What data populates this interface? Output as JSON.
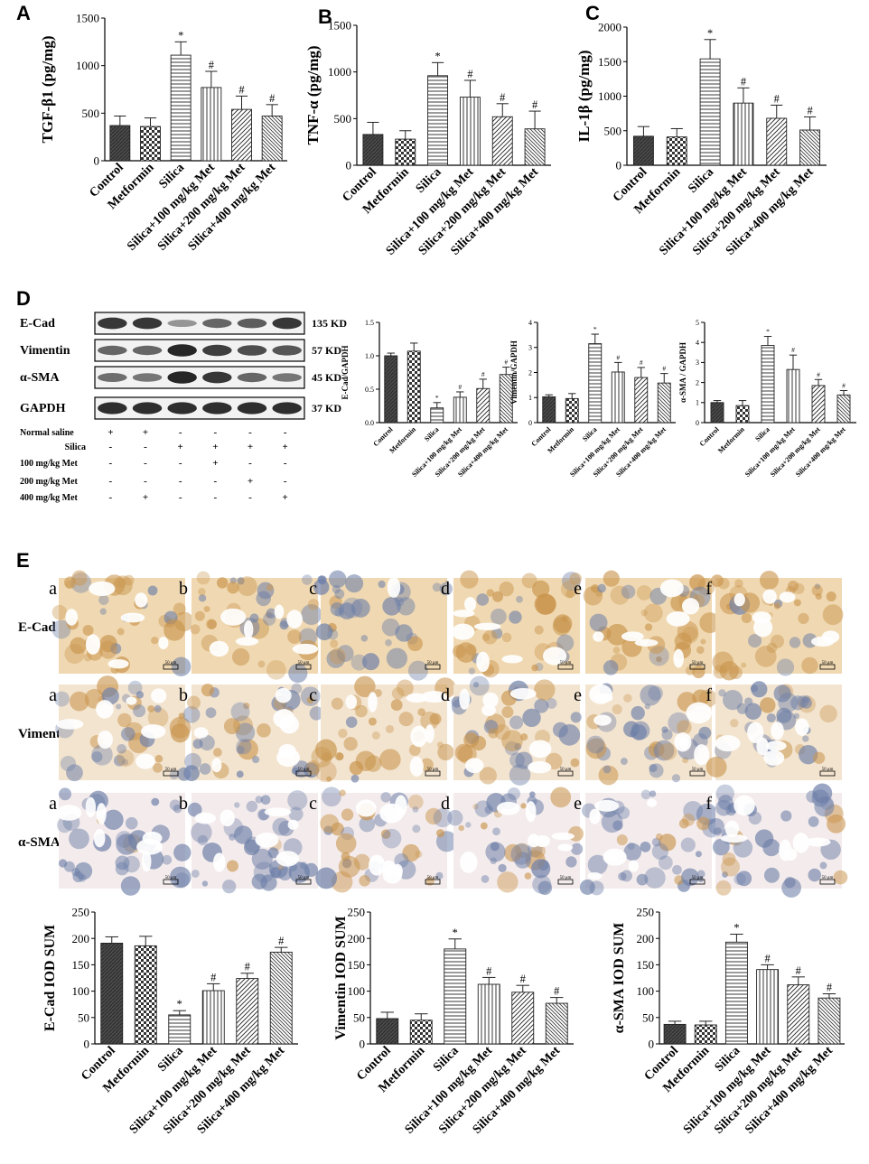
{
  "colors": {
    "bar_edge": "#222222",
    "bar_dark": "#555555",
    "ihc_brown": "#c9954e",
    "ihc_blue": "#6d7fa8",
    "blot_band": "#1e1e1e",
    "blot_bg": "#f2f2f2"
  },
  "categories": [
    "Control",
    "Metformin",
    "Silica",
    "Silica+100 mg/kg Met",
    "Silica+200 mg/kg Met",
    "Silica+400 mg/kg Met"
  ],
  "significance_marks": [
    "",
    "",
    "*",
    "#",
    "#",
    "#"
  ],
  "panel_letters": {
    "A": "A",
    "B": "B",
    "C": "C",
    "D": "D",
    "E": "E"
  },
  "blot": {
    "proteins": [
      {
        "name": "E-Cad",
        "size": "135 KD",
        "intensities": [
          0.85,
          0.85,
          0.25,
          0.55,
          0.6,
          0.85
        ]
      },
      {
        "name": "Vimentin",
        "size": "57 KD",
        "intensities": [
          0.55,
          0.55,
          0.95,
          0.8,
          0.7,
          0.65
        ]
      },
      {
        "name": "α-SMA",
        "size": "45 KD",
        "intensities": [
          0.5,
          0.45,
          0.95,
          0.85,
          0.55,
          0.45
        ]
      },
      {
        "name": "GAPDH",
        "size": "37 KD",
        "intensities": [
          0.9,
          0.9,
          0.9,
          0.9,
          0.9,
          0.9
        ]
      }
    ],
    "treatments": [
      {
        "label": "Normal saline",
        "marks": [
          "+",
          "+",
          "-",
          "-",
          "-",
          "-"
        ]
      },
      {
        "label": "Silica",
        "marks": [
          "-",
          "-",
          "+",
          "+",
          "+",
          "+"
        ]
      },
      {
        "label": "100 mg/kg Met",
        "marks": [
          "-",
          "-",
          "-",
          "+",
          "-",
          "-"
        ]
      },
      {
        "label": "200 mg/kg Met",
        "marks": [
          "-",
          "-",
          "-",
          "-",
          "+",
          "-"
        ]
      },
      {
        "label": "400 mg/kg Met",
        "marks": [
          "-",
          "+",
          "-",
          "-",
          "-",
          "+"
        ]
      }
    ]
  },
  "ihc": {
    "row_labels": [
      "E-Cad",
      "Vimentin",
      "α-SMA"
    ],
    "sub_labels": [
      "a",
      "b",
      "c",
      "d",
      "e",
      "f"
    ],
    "scale_text": "50 μm"
  },
  "chart_data": [
    {
      "id": "A",
      "type": "bar",
      "ylabel": "TGF-β1 (pg/mg)",
      "ylim": [
        0,
        1500
      ],
      "yticks": [
        0,
        500,
        1000,
        1500
      ],
      "values": [
        370,
        360,
        1110,
        770,
        540,
        470
      ],
      "errors": [
        100,
        90,
        140,
        170,
        140,
        120
      ]
    },
    {
      "id": "B",
      "type": "bar",
      "ylabel": "TNF-α (pg/mg)",
      "ylim": [
        0,
        1500
      ],
      "yticks": [
        0,
        500,
        1000,
        1500
      ],
      "values": [
        330,
        280,
        960,
        730,
        520,
        390
      ],
      "errors": [
        130,
        90,
        140,
        180,
        140,
        190
      ]
    },
    {
      "id": "C",
      "type": "bar",
      "ylabel": "IL-1β (pg/mg)",
      "ylim": [
        0,
        2000
      ],
      "yticks": [
        0,
        500,
        1000,
        1500,
        2000
      ],
      "values": [
        420,
        410,
        1540,
        900,
        680,
        510
      ],
      "errors": [
        140,
        120,
        280,
        220,
        190,
        190
      ]
    },
    {
      "id": "D1",
      "type": "bar",
      "ylabel": "E-Cad/GAPDH",
      "ylim": [
        0,
        1.5
      ],
      "yticks": [
        0.0,
        0.5,
        1.0,
        1.5
      ],
      "values": [
        1.0,
        1.07,
        0.22,
        0.38,
        0.51,
        0.72
      ],
      "errors": [
        0.04,
        0.12,
        0.08,
        0.08,
        0.14,
        0.11
      ]
    },
    {
      "id": "D2",
      "type": "bar",
      "ylabel": "Vimentin/GAPDH",
      "ylim": [
        0,
        4
      ],
      "yticks": [
        0,
        1,
        2,
        3,
        4
      ],
      "values": [
        1.03,
        0.96,
        3.15,
        2.02,
        1.8,
        1.58
      ],
      "errors": [
        0.08,
        0.2,
        0.38,
        0.38,
        0.4,
        0.38
      ]
    },
    {
      "id": "D3",
      "type": "bar",
      "ylabel": "α-SMA / GAPDH",
      "ylim": [
        0,
        5
      ],
      "yticks": [
        0,
        1,
        2,
        3,
        4,
        5
      ],
      "values": [
        1.0,
        0.85,
        3.85,
        2.65,
        1.85,
        1.38
      ],
      "errors": [
        0.1,
        0.25,
        0.45,
        0.72,
        0.3,
        0.22
      ]
    },
    {
      "id": "E1",
      "type": "bar",
      "ylabel": "E-Cad IOD SUM",
      "ylim": [
        0,
        250
      ],
      "yticks": [
        0,
        50,
        100,
        150,
        200,
        250
      ],
      "values": [
        191,
        186,
        55,
        101,
        124,
        174
      ],
      "errors": [
        12,
        18,
        8,
        13,
        10,
        9
      ]
    },
    {
      "id": "E2",
      "type": "bar",
      "ylabel": "Vimentin IOD SUM",
      "ylim": [
        0,
        250
      ],
      "yticks": [
        0,
        50,
        100,
        150,
        200,
        250
      ],
      "values": [
        48,
        45,
        180,
        113,
        98,
        77
      ],
      "errors": [
        12,
        12,
        19,
        13,
        13,
        11
      ]
    },
    {
      "id": "E3",
      "type": "bar",
      "ylabel": "α-SMA IOD SUM",
      "ylim": [
        0,
        250
      ],
      "yticks": [
        0,
        50,
        100,
        150,
        200,
        250
      ],
      "values": [
        37,
        36,
        193,
        141,
        112,
        87
      ],
      "errors": [
        6,
        7,
        15,
        9,
        15,
        8
      ]
    }
  ]
}
